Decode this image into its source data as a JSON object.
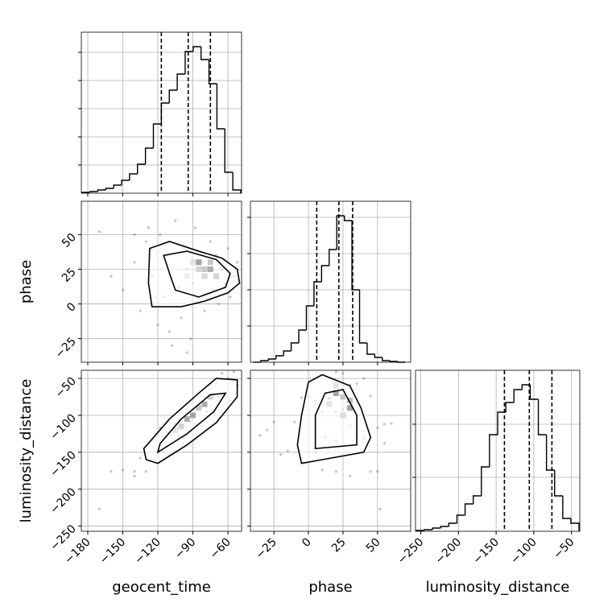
{
  "chart_data": {
    "type": "corner",
    "parameters": [
      {
        "label": "geocent_time",
        "lim": [
          -185.5,
          -48.3
        ],
        "ticks": [
          {
            "value": -180,
            "label": "−180"
          },
          {
            "value": -150,
            "label": "−150"
          },
          {
            "value": -120,
            "label": "−120"
          },
          {
            "value": -90,
            "label": "−90"
          },
          {
            "value": -60,
            "label": "−60"
          }
        ]
      },
      {
        "label": "phase",
        "lim": [
          -42,
          74
        ],
        "ticks": [
          {
            "value": -25,
            "label": "−25"
          },
          0,
          25,
          50
        ]
      },
      {
        "label": "luminosity_distance",
        "lim": [
          -257,
          -39
        ],
        "ticks": [
          {
            "value": -250,
            "label": "−250"
          },
          {
            "value": -200,
            "label": "−200"
          },
          {
            "value": -150,
            "label": "−150"
          },
          {
            "value": -100,
            "label": "−100"
          },
          {
            "value": -50,
            "label": "−50"
          }
        ]
      }
    ],
    "grid": true,
    "samples": [
      [
        -150,
        -140,
        -135,
        -130,
        -125,
        -120,
        -118,
        -115,
        -112,
        -110,
        -105,
        -102,
        -100,
        -98,
        -95,
        -92,
        -90,
        -88,
        -85,
        -82,
        -80,
        -78,
        -75,
        -72,
        -70,
        -68,
        -65,
        -62,
        -60,
        -58,
        -55,
        -52,
        -108,
        -95,
        -128,
        -140,
        -160,
        -170
      ],
      [
        10,
        30,
        -5,
        45,
        20,
        -15,
        50,
        5,
        35,
        -20,
        60,
        12,
        -10,
        40,
        25,
        -25,
        15,
        55,
        5,
        30,
        -5,
        20,
        45,
        10,
        35,
        0,
        25,
        15,
        40,
        5,
        20,
        30,
        -30,
        -35,
        55,
        50,
        20,
        52
      ],
      [
        -174,
        -182,
        -158,
        -176,
        -134,
        -148,
        -117,
        -150,
        -123,
        -153,
        -111,
        -129,
        -109,
        -131,
        -92,
        -109,
        -78,
        -112,
        -85,
        -114,
        -76,
        -95,
        -74,
        -95,
        -57,
        -75,
        -43,
        -76,
        -50,
        -80,
        -41,
        -59,
        -120,
        -127,
        -138,
        -176,
        -176,
        -227
      ]
    ],
    "histograms": [
      {
        "bins": [
          -185,
          -178.2,
          -171.4,
          -164.6,
          -157.8,
          -151,
          -144.2,
          -137.4,
          -130.6,
          -123.8,
          -117,
          -110.2,
          -103.4,
          -96.6,
          -89.8,
          -83,
          -76.2,
          -69.4,
          -62.6,
          -55.8,
          -49
        ],
        "counts": [
          5,
          10,
          20,
          30,
          50,
          80,
          120,
          180,
          280,
          430,
          560,
          640,
          740,
          880,
          910,
          830,
          680,
          400,
          130,
          20
        ],
        "quantiles": [
          -117,
          -94,
          -75
        ],
        "ylim": [
          0,
          1000
        ],
        "yticks": [
          175,
          350,
          525,
          700,
          875
        ]
      },
      {
        "bins": [
          -40,
          -34.5,
          -29,
          -23.5,
          -18,
          -12.5,
          -7,
          -1.5,
          4,
          9.5,
          15,
          20.5,
          26,
          31.5,
          37,
          42.5,
          48,
          53.5,
          59,
          64.5,
          70
        ],
        "counts": [
          0,
          10,
          20,
          40,
          70,
          120,
          200,
          350,
          500,
          600,
          700,
          910,
          880,
          450,
          120,
          50,
          30,
          10,
          5,
          0
        ],
        "quantiles": [
          6,
          22,
          32
        ],
        "ylim": [
          0,
          1000
        ],
        "yticks": [
          225,
          450,
          675,
          900
        ]
      },
      {
        "bins": [
          -256,
          -245.2,
          -234.4,
          -223.6,
          -212.8,
          -202,
          -191.2,
          -180.4,
          -169.6,
          -158.8,
          -148,
          -137.2,
          -126.4,
          -115.6,
          -104.8,
          -94,
          -83.2,
          -72.4,
          -61.6,
          -50.8,
          -40
        ],
        "counts": [
          5,
          10,
          20,
          30,
          50,
          100,
          170,
          220,
          400,
          600,
          740,
          800,
          880,
          910,
          820,
          600,
          380,
          220,
          80,
          50
        ],
        "quantiles": [
          -139,
          -106,
          -76
        ],
        "ylim": [
          0,
          1000
        ],
        "yticks": [
          335,
          665
        ]
      }
    ],
    "pairs": [
      {
        "contours": [
          {
            "x": [
              -127,
              -110,
              -85,
              -65,
              -52,
              -50,
              -60,
              -80,
              -100,
              -125,
              -128
            ],
            "y": [
              40,
              45,
              38,
              33,
              25,
              15,
              8,
              2,
              -2,
              -2,
              15
            ]
          },
          {
            "x": [
              -115,
              -95,
              -70,
              -58,
              -62,
              -85,
              -105,
              -110
            ],
            "y": [
              35,
              38,
              32,
              22,
              12,
              5,
              10,
              22
            ]
          }
        ],
        "cells": {
          "x": [
            -90,
            -85,
            -80,
            -75,
            -70,
            -85,
            -80,
            -75,
            -95
          ],
          "y": [
            30,
            30,
            25,
            25,
            20,
            25,
            20,
            30,
            20
          ],
          "values": [
            0.3,
            1,
            0.6,
            0.9,
            0.5,
            0.5,
            0.4,
            0.6,
            0.2
          ]
        }
      },
      {
        "contours": [
          {
            "x": [
              -130,
              -120,
              -95,
              -70,
              -52,
              -52,
              -70,
              -85,
              -110,
              -132
            ],
            "y": [
              -160,
              -165,
              -140,
              -110,
              -75,
              -52,
              -50,
              -70,
              -105,
              -145
            ]
          },
          {
            "x": [
              -120,
              -95,
              -72,
              -62,
              -75,
              -100,
              -118
            ],
            "y": [
              -150,
              -125,
              -95,
              -70,
              -72,
              -105,
              -138
            ]
          }
        ],
        "cells": {
          "x": [
            -100,
            -95,
            -90,
            -85,
            -80,
            -75,
            -105
          ],
          "y": [
            -115,
            -105,
            -100,
            -90,
            -85,
            -75,
            -120
          ],
          "values": [
            0.5,
            0.9,
            1,
            0.6,
            0.9,
            0.5,
            0.3
          ]
        }
      },
      {
        "contours": [
          {
            "x": [
              -5,
              10,
              40,
              45,
              38,
              30,
              10,
              0,
              -5,
              -8
            ],
            "y": [
              -165,
              -160,
              -150,
              -130,
              -90,
              -60,
              -45,
              -55,
              -100,
              -140
            ]
          },
          {
            "x": [
              5,
              35,
              35,
              25,
              12,
              5
            ],
            "y": [
              -145,
              -140,
              -100,
              -65,
              -70,
              -100
            ]
          }
        ],
        "cells": {
          "x": [
            20,
            20,
            25,
            30,
            30,
            25,
            15
          ],
          "y": [
            -60,
            -70,
            -75,
            -80,
            -90,
            -100,
            -85
          ],
          "values": [
            0.3,
            1,
            0.6,
            0.7,
            1,
            0.4,
            0.3
          ]
        }
      }
    ]
  }
}
